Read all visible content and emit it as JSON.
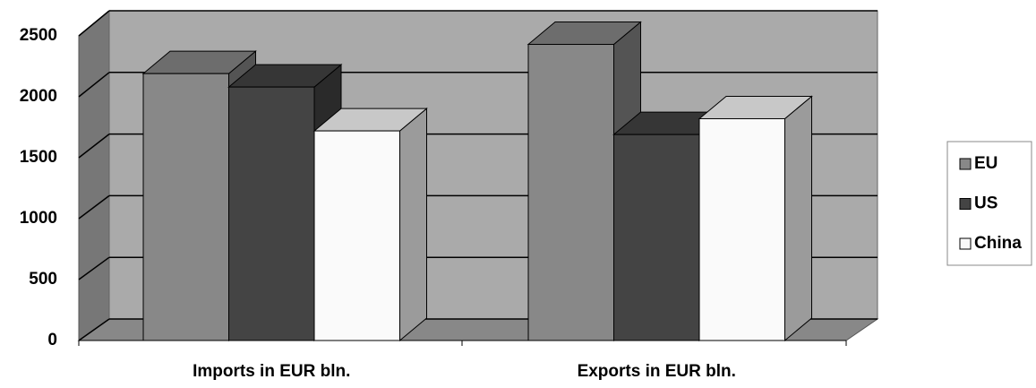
{
  "chart_data": {
    "type": "bar3d",
    "categories": [
      "Imports in EUR bln.",
      "Exports in EUR bln."
    ],
    "series": [
      {
        "name": "EU",
        "color": "#888888",
        "values": [
          2190,
          2430
        ]
      },
      {
        "name": "US",
        "color": "#444444",
        "values": [
          2080,
          1690
        ]
      },
      {
        "name": "China",
        "color": "#fafafa",
        "values": [
          1720,
          1820
        ]
      }
    ],
    "ylim": [
      0,
      2500
    ],
    "yticks": [
      0,
      500,
      1000,
      1500,
      2000,
      2500
    ],
    "grid": true,
    "legend": "right"
  }
}
